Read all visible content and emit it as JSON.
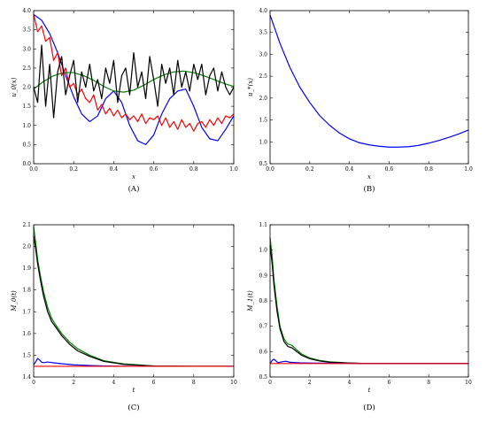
{
  "captions": [
    "(A)",
    "(B)",
    "(C)",
    "(D)"
  ],
  "chart_data": [
    {
      "type": "line",
      "xlabel": "x",
      "ylabel": "u_0(x)",
      "xlim": [
        0,
        1
      ],
      "ylim": [
        0,
        4
      ],
      "xticks": [
        "0.0",
        "0.2",
        "0.4",
        "0.6",
        "0.8",
        "1.0"
      ],
      "yticks": [
        "0.0",
        "0.5",
        "1.0",
        "1.5",
        "2.0",
        "2.5",
        "3.0",
        "3.5",
        "4.0"
      ],
      "series": [
        {
          "color": "#0000ff",
          "x": [
            0,
            0.04,
            0.08,
            0.12,
            0.16,
            0.2,
            0.24,
            0.28,
            0.32,
            0.36,
            0.4,
            0.44,
            0.48,
            0.52,
            0.56,
            0.6,
            0.64,
            0.68,
            0.72,
            0.76,
            0.8,
            0.84,
            0.88,
            0.92,
            0.96,
            1.0
          ],
          "y": [
            3.9,
            3.75,
            3.4,
            2.9,
            2.3,
            1.75,
            1.3,
            1.1,
            1.25,
            1.7,
            1.9,
            1.6,
            1.0,
            0.6,
            0.5,
            0.75,
            1.3,
            1.7,
            1.9,
            1.95,
            1.5,
            0.95,
            0.65,
            0.6,
            0.9,
            1.25
          ]
        },
        {
          "color": "#008000",
          "x": [
            0,
            0.05,
            0.1,
            0.15,
            0.2,
            0.25,
            0.3,
            0.35,
            0.4,
            0.45,
            0.5,
            0.55,
            0.6,
            0.65,
            0.7,
            0.75,
            0.8,
            0.85,
            0.9,
            0.95,
            1.0
          ],
          "y": [
            1.95,
            2.15,
            2.3,
            2.38,
            2.38,
            2.3,
            2.18,
            2.02,
            1.9,
            1.87,
            1.92,
            2.05,
            2.2,
            2.32,
            2.4,
            2.42,
            2.38,
            2.3,
            2.2,
            2.1,
            2.02
          ]
        },
        {
          "color": "#ff0000",
          "x": [
            0,
            0.02,
            0.04,
            0.06,
            0.08,
            0.1,
            0.12,
            0.14,
            0.16,
            0.18,
            0.2,
            0.22,
            0.24,
            0.26,
            0.28,
            0.3,
            0.32,
            0.34,
            0.36,
            0.38,
            0.4,
            0.42,
            0.44,
            0.46,
            0.48,
            0.5,
            0.52,
            0.54,
            0.56,
            0.58,
            0.6,
            0.62,
            0.64,
            0.66,
            0.68,
            0.7,
            0.72,
            0.74,
            0.76,
            0.78,
            0.8,
            0.82,
            0.84,
            0.86,
            0.88,
            0.9,
            0.92,
            0.94,
            0.96,
            0.98,
            1.0
          ],
          "y": [
            3.9,
            3.45,
            3.6,
            3.2,
            3.3,
            2.7,
            2.9,
            2.3,
            2.5,
            2.0,
            2.1,
            1.8,
            1.95,
            1.7,
            1.6,
            1.8,
            1.4,
            1.55,
            1.3,
            1.45,
            1.25,
            1.4,
            1.2,
            1.3,
            1.15,
            1.25,
            1.1,
            1.3,
            1.05,
            1.2,
            1.15,
            1.25,
            1.0,
            1.2,
            0.95,
            1.1,
            0.9,
            1.15,
            0.95,
            1.05,
            0.85,
            1.05,
            1.1,
            0.95,
            1.15,
            1.0,
            1.2,
            1.05,
            1.25,
            1.2,
            1.3
          ]
        },
        {
          "color": "#000000",
          "x": [
            0,
            0.02,
            0.04,
            0.06,
            0.08,
            0.1,
            0.12,
            0.14,
            0.16,
            0.18,
            0.2,
            0.22,
            0.24,
            0.26,
            0.28,
            0.3,
            0.32,
            0.34,
            0.36,
            0.38,
            0.4,
            0.42,
            0.44,
            0.46,
            0.48,
            0.5,
            0.52,
            0.54,
            0.56,
            0.58,
            0.6,
            0.62,
            0.64,
            0.66,
            0.68,
            0.7,
            0.72,
            0.74,
            0.76,
            0.78,
            0.8,
            0.82,
            0.84,
            0.86,
            0.88,
            0.9,
            0.92,
            0.94,
            0.96,
            0.98,
            1.0
          ],
          "y": [
            2.0,
            1.6,
            3.1,
            1.5,
            2.6,
            1.2,
            2.4,
            2.8,
            1.8,
            2.3,
            2.7,
            1.6,
            2.4,
            2.0,
            2.6,
            1.9,
            2.2,
            1.7,
            2.5,
            2.1,
            2.7,
            1.6,
            2.3,
            2.5,
            1.8,
            2.9,
            2.0,
            2.4,
            1.7,
            2.8,
            2.2,
            1.5,
            2.6,
            2.1,
            2.5,
            1.8,
            2.7,
            2.0,
            2.4,
            1.9,
            2.6,
            2.2,
            2.6,
            1.8,
            2.3,
            2.5,
            1.9,
            2.4,
            2.0,
            1.8,
            2.0
          ]
        }
      ]
    },
    {
      "type": "line",
      "xlabel": "x",
      "ylabel": "u_*(x)",
      "xlim": [
        0,
        1
      ],
      "ylim": [
        0.5,
        4
      ],
      "xticks": [
        "0.0",
        "0.2",
        "0.4",
        "0.6",
        "0.8",
        "1.0"
      ],
      "yticks": [
        "0.5",
        "1.0",
        "1.5",
        "2.0",
        "2.5",
        "3.0",
        "3.5",
        "4.0"
      ],
      "series": [
        {
          "color": "#0000ff",
          "x": [
            0,
            0.05,
            0.1,
            0.15,
            0.2,
            0.25,
            0.3,
            0.35,
            0.4,
            0.45,
            0.5,
            0.55,
            0.6,
            0.65,
            0.7,
            0.75,
            0.8,
            0.85,
            0.9,
            0.95,
            1.0
          ],
          "y": [
            3.9,
            3.25,
            2.7,
            2.25,
            1.9,
            1.6,
            1.38,
            1.2,
            1.07,
            0.98,
            0.93,
            0.9,
            0.88,
            0.88,
            0.89,
            0.92,
            0.97,
            1.03,
            1.1,
            1.18,
            1.27
          ]
        }
      ]
    },
    {
      "type": "line",
      "xlabel": "t",
      "ylabel": "M_0(t)",
      "xlim": [
        0,
        10
      ],
      "ylim": [
        1.4,
        2.1
      ],
      "xticks": [
        "0",
        "2",
        "4",
        "6",
        "8",
        "10"
      ],
      "yticks": [
        "1.4",
        "1.5",
        "1.6",
        "1.7",
        "1.8",
        "1.9",
        "2.0",
        "2.1"
      ],
      "series": [
        {
          "color": "#008000",
          "x": [
            0,
            0.1,
            0.2,
            0.35,
            0.5,
            0.7,
            0.9,
            1.1,
            1.4,
            1.8,
            2.2,
            2.8,
            3.5,
            4.5,
            6,
            8,
            10
          ],
          "y": [
            2.09,
            2.02,
            1.94,
            1.86,
            1.79,
            1.72,
            1.67,
            1.64,
            1.6,
            1.56,
            1.53,
            1.5,
            1.475,
            1.46,
            1.451,
            1.449,
            1.449
          ]
        },
        {
          "color": "#000000",
          "x": [
            0,
            0.1,
            0.2,
            0.35,
            0.5,
            0.7,
            0.9,
            1.1,
            1.4,
            1.8,
            2.2,
            2.8,
            3.5,
            4.5,
            6,
            8,
            10
          ],
          "y": [
            2.05,
            1.99,
            1.92,
            1.84,
            1.77,
            1.7,
            1.655,
            1.63,
            1.59,
            1.55,
            1.52,
            1.495,
            1.472,
            1.458,
            1.45,
            1.449,
            1.449
          ]
        },
        {
          "color": "#0000ff",
          "x": [
            0,
            0.1,
            0.2,
            0.3,
            0.4,
            0.5,
            0.7,
            1.0,
            1.5,
            2,
            3,
            4,
            5,
            6,
            10
          ],
          "y": [
            1.455,
            1.47,
            1.485,
            1.478,
            1.468,
            1.466,
            1.469,
            1.465,
            1.46,
            1.456,
            1.452,
            1.45,
            1.449,
            1.449,
            1.449
          ]
        },
        {
          "color": "#ff0000",
          "x": [
            0,
            10
          ],
          "y": [
            1.449,
            1.449
          ]
        }
      ]
    },
    {
      "type": "line",
      "xlabel": "t",
      "ylabel": "M_1(t)",
      "xlim": [
        0,
        10
      ],
      "ylim": [
        0.5,
        1.1
      ],
      "xticks": [
        "0",
        "2",
        "4",
        "6",
        "8",
        "10"
      ],
      "yticks": [
        "0.5",
        "0.6",
        "0.7",
        "0.8",
        "0.9",
        "1.0",
        "1.1"
      ],
      "series": [
        {
          "color": "#008000",
          "x": [
            0,
            0.1,
            0.2,
            0.35,
            0.5,
            0.7,
            0.9,
            1.1,
            1.3,
            1.6,
            2,
            2.5,
            3,
            4,
            5,
            7,
            10
          ],
          "y": [
            1.05,
            0.98,
            0.88,
            0.78,
            0.7,
            0.65,
            0.63,
            0.625,
            0.61,
            0.59,
            0.575,
            0.565,
            0.56,
            0.555,
            0.553,
            0.553,
            0.553
          ]
        },
        {
          "color": "#000000",
          "x": [
            0,
            0.1,
            0.2,
            0.35,
            0.5,
            0.7,
            0.9,
            1.1,
            1.3,
            1.6,
            2,
            2.5,
            3,
            4,
            5,
            7,
            10
          ],
          "y": [
            1.02,
            0.95,
            0.86,
            0.76,
            0.69,
            0.64,
            0.62,
            0.615,
            0.603,
            0.585,
            0.572,
            0.563,
            0.558,
            0.555,
            0.553,
            0.553,
            0.553
          ]
        },
        {
          "color": "#0000ff",
          "x": [
            0,
            0.1,
            0.2,
            0.3,
            0.4,
            0.6,
            0.8,
            1.0,
            1.5,
            2,
            3,
            5,
            10
          ],
          "y": [
            0.553,
            0.565,
            0.57,
            0.563,
            0.556,
            0.56,
            0.562,
            0.558,
            0.556,
            0.555,
            0.554,
            0.553,
            0.553
          ]
        },
        {
          "color": "#ff0000",
          "x": [
            0,
            10
          ],
          "y": [
            0.553,
            0.553
          ]
        }
      ]
    }
  ]
}
